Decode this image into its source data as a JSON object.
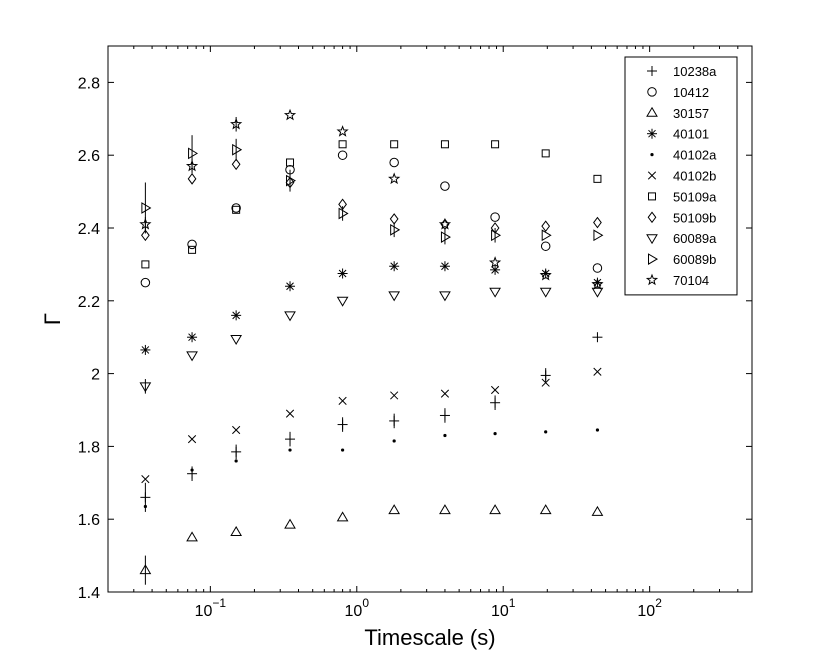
{
  "chart_data": {
    "type": "scatter",
    "title": "",
    "xlabel": "Timescale (s)",
    "ylabel": "Γ",
    "xscale": "log",
    "xlim": [
      0.02,
      500
    ],
    "ylim": [
      1.4,
      2.9
    ],
    "yticks": [
      "1.4",
      "1.6",
      "1.8",
      "2",
      "2.2",
      "2.4",
      "2.6",
      "2.8"
    ],
    "xticks": [
      {
        "base": "10",
        "exp": "−1"
      },
      {
        "base": "10",
        "exp": "0"
      },
      {
        "base": "10",
        "exp": "1"
      },
      {
        "base": "10",
        "exp": "2"
      }
    ],
    "legend_position": "top-right",
    "grid": false,
    "x": [
      0.036,
      0.075,
      0.15,
      0.35,
      0.8,
      1.8,
      4.0,
      8.8,
      19.5,
      44
    ],
    "series": [
      {
        "name": "10238a",
        "marker": "plus",
        "values": [
          1.66,
          1.725,
          1.785,
          1.82,
          1.86,
          1.87,
          1.885,
          1.92,
          1.995,
          2.1
        ],
        "errors": [
          0.04,
          0.02,
          0.02,
          0.02,
          0.02,
          0.02,
          0.02,
          0.02,
          0.02,
          0
        ]
      },
      {
        "name": "10412",
        "marker": "circle",
        "values": [
          2.25,
          2.355,
          2.455,
          2.56,
          2.6,
          2.58,
          2.515,
          2.43,
          2.35,
          2.29
        ]
      },
      {
        "name": "30157",
        "marker": "triangle-up",
        "values": [
          1.46,
          1.55,
          1.565,
          1.585,
          1.605,
          1.625,
          1.625,
          1.625,
          1.625,
          1.62
        ],
        "errors": [
          0.04,
          0,
          0,
          0,
          0,
          0,
          0,
          0,
          0,
          0
        ]
      },
      {
        "name": "40101",
        "marker": "asterisk",
        "values": [
          2.065,
          2.1,
          2.16,
          2.24,
          2.275,
          2.295,
          2.295,
          2.285,
          2.275,
          2.25
        ]
      },
      {
        "name": "40102a",
        "marker": "dot",
        "values": [
          1.635,
          1.735,
          1.76,
          1.79,
          1.79,
          1.815,
          1.83,
          1.835,
          1.84,
          1.845
        ]
      },
      {
        "name": "40102b",
        "marker": "x",
        "values": [
          1.71,
          1.82,
          1.845,
          1.89,
          1.925,
          1.94,
          1.945,
          1.955,
          1.975,
          2.005
        ]
      },
      {
        "name": "50109a",
        "marker": "square",
        "values": [
          2.3,
          2.34,
          2.45,
          2.58,
          2.63,
          2.63,
          2.63,
          2.63,
          2.605,
          2.535
        ]
      },
      {
        "name": "50109b",
        "marker": "diamond",
        "values": [
          2.38,
          2.535,
          2.575,
          2.525,
          2.465,
          2.425,
          2.41,
          2.4,
          2.405,
          2.415
        ]
      },
      {
        "name": "60089a",
        "marker": "triangle-down",
        "values": [
          1.965,
          2.05,
          2.095,
          2.16,
          2.2,
          2.215,
          2.215,
          2.225,
          2.225,
          2.225
        ],
        "errors": [
          0.02,
          0,
          0,
          0,
          0,
          0,
          0,
          0,
          0,
          0
        ]
      },
      {
        "name": "60089b",
        "marker": "triangle-right",
        "values": [
          2.455,
          2.605,
          2.615,
          2.53,
          2.44,
          2.395,
          2.375,
          2.38,
          2.38,
          2.38
        ],
        "errors": [
          0.07,
          0.05,
          0.03,
          0.03,
          0.02,
          0.02,
          0.02,
          0.02,
          0,
          0
        ]
      },
      {
        "name": "70104",
        "marker": "star",
        "values": [
          2.41,
          2.57,
          2.685,
          2.71,
          2.665,
          2.535,
          2.41,
          2.305,
          2.27,
          2.245
        ],
        "errors": [
          0.02,
          0.02,
          0.02,
          0,
          0,
          0,
          0,
          0,
          0,
          0
        ]
      }
    ]
  }
}
